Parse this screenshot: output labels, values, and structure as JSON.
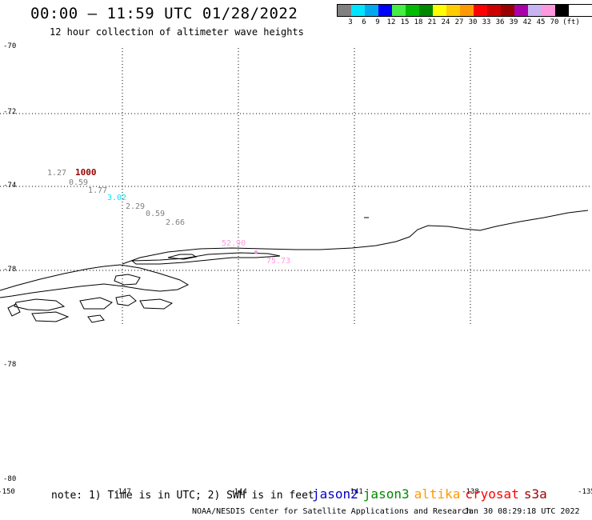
{
  "header": {
    "title": "00:00 – 11:59 UTC 01/28/2022",
    "subtitle": "12 hour collection of altimeter wave heights"
  },
  "legend": {
    "colors": [
      "#808080",
      "#00e5ff",
      "#00a8f0",
      "#0000ff",
      "#44ee44",
      "#00bb00",
      "#008800",
      "#ffff00",
      "#ffcc00",
      "#ff9900",
      "#ff0000",
      "#cc0000",
      "#990000",
      "#aa00aa",
      "#c8b4f0",
      "#ff99dd",
      "#000000"
    ],
    "labels": [
      "3",
      "6",
      "9",
      "12",
      "15",
      "18",
      "21",
      "24",
      "27",
      "30",
      "33",
      "36",
      "39",
      "42",
      "45",
      "70",
      "(ft)"
    ]
  },
  "axes": {
    "lat_labels": [
      "-70",
      "-72",
      "-74",
      "-76",
      "-78",
      "-78",
      "-80"
    ],
    "lon_labels": [
      "-150",
      "-147",
      "-144",
      "-141",
      "-138",
      "-135"
    ]
  },
  "observations": [
    {
      "text": "1.27",
      "color": "#808080"
    },
    {
      "text": "1000",
      "color": "#990000"
    },
    {
      "text": "0.59",
      "color": "#808080"
    },
    {
      "text": "1.77",
      "color": "#808080"
    },
    {
      "text": "3.02",
      "color": "#00e5ff"
    },
    {
      "text": "2.29",
      "color": "#808080"
    },
    {
      "text": "0.59",
      "color": "#808080"
    },
    {
      "text": "2.66",
      "color": "#808080"
    },
    {
      "text": "52.90",
      "color": "#ff99dd"
    },
    {
      "text": "75.73",
      "color": "#ff99dd"
    }
  ],
  "footer": {
    "note": "note: 1) Time is in UTC; 2) SWH is in feet",
    "satellites": [
      {
        "name": "jason2",
        "color": "#0000cc"
      },
      {
        "name": "jason3",
        "color": "#008800"
      },
      {
        "name": "altika",
        "color": "#ff9900"
      },
      {
        "name": "cryosat",
        "color": "#ff0000"
      },
      {
        "name": "s3a",
        "color": "#990000"
      }
    ],
    "credit": "NOAA/NESDIS Center for Satellite Applications and Research",
    "datestamp": "Jan 30 08:29:18 UTC 2022"
  }
}
